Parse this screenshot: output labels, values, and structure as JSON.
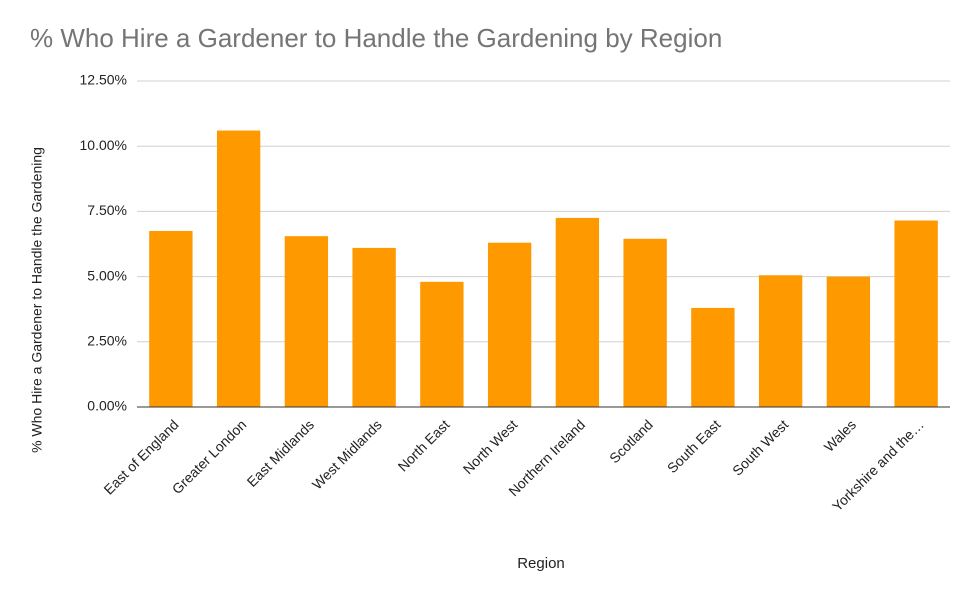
{
  "chart_data": {
    "type": "bar",
    "title": "% Who Hire a Gardener to Handle the Gardening by Region",
    "x_label": "Region",
    "y_label": "% Who Hire a Gardener to Handle the Gardening",
    "categories": [
      "East of England",
      "Greater London",
      "East Midlands",
      "West Midlands",
      "North East",
      "North West",
      "Northern Ireland",
      "Scotland",
      "South East",
      "South West",
      "Wales",
      "Yorkshire and the…"
    ],
    "values": [
      6.75,
      10.6,
      6.55,
      6.1,
      4.8,
      6.3,
      7.25,
      6.45,
      3.8,
      5.05,
      5.0,
      7.15
    ],
    "color": "#ff9900",
    "ylim": [
      0,
      12.5
    ],
    "yticks": [
      {
        "value": 0,
        "label": "0.00%"
      },
      {
        "value": 2.5,
        "label": "2.50%"
      },
      {
        "value": 5,
        "label": "5.00%"
      },
      {
        "value": 7.5,
        "label": "7.50%"
      },
      {
        "value": 10,
        "label": "10.00%"
      },
      {
        "value": 12.5,
        "label": "12.50%"
      }
    ],
    "grid": true
  }
}
